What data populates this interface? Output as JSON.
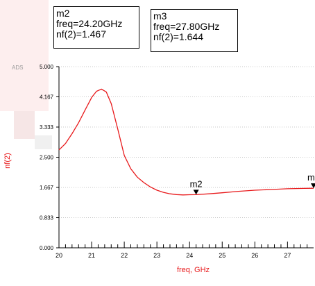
{
  "watermark_text": "ADS",
  "markers": [
    {
      "name": "m2",
      "line1": "m2",
      "line2": "freq=24.20GHz",
      "line3": "nf(2)=1.467",
      "x": 24.2,
      "y": 1.467
    },
    {
      "name": "m3",
      "line1": "m3",
      "line2": "freq=27.80GHz",
      "line3": "nf(2)=1.644",
      "x": 27.8,
      "y": 1.644
    }
  ],
  "colors": {
    "curve": "#e8191b",
    "axis_label": "#e8191b",
    "axis": "#000000",
    "grid": "#c8c8c8"
  },
  "chart_data": {
    "type": "line",
    "xlabel": "freq, GHz",
    "ylabel": "nf(2)",
    "xlim": [
      20,
      27.8
    ],
    "ylim": [
      0,
      5
    ],
    "x_ticks": [
      "20",
      "21",
      "22",
      "23",
      "24",
      "25",
      "26",
      "27"
    ],
    "y_ticks": [
      "0.000",
      "0.833",
      "1.667",
      "2.500",
      "3.333",
      "4.167",
      "5.000"
    ],
    "grid": true,
    "series": [
      {
        "x": [
          20.0,
          20.2,
          20.4,
          20.6,
          20.8,
          21.0,
          21.15,
          21.3,
          21.45,
          21.6,
          21.8,
          22.0,
          22.2,
          22.4,
          22.6,
          22.8,
          23.0,
          23.2,
          23.4,
          23.6,
          23.8,
          24.0,
          24.2,
          24.6,
          25.0,
          25.5,
          26.0,
          26.5,
          27.0,
          27.5,
          27.8
        ],
        "y": [
          2.7,
          2.88,
          3.15,
          3.45,
          3.8,
          4.15,
          4.32,
          4.38,
          4.3,
          3.98,
          3.28,
          2.55,
          2.18,
          1.95,
          1.8,
          1.68,
          1.59,
          1.53,
          1.49,
          1.47,
          1.46,
          1.465,
          1.467,
          1.49,
          1.52,
          1.56,
          1.59,
          1.61,
          1.63,
          1.64,
          1.644
        ]
      }
    ]
  }
}
